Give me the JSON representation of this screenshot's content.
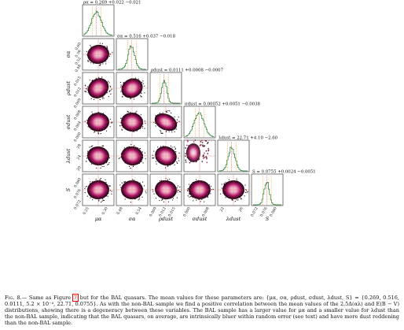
{
  "figure": {
    "panel_titles": [
      "ρα = 0.269 +0.022 −0.021",
      "σα = 0.516 +0.037 −0.018",
      "ρdust = 0.0111 +0.0008 −0.0007",
      "σdust = 0.00052 +0.0051 −0.0038",
      "λdust = 22.71 +4.10 −2.60",
      "S = 0.0755 +0.0024 −0.0051"
    ],
    "axis_labels": {
      "mu": "μα",
      "sigma": "σα",
      "rho": "ρdust",
      "sigdust": "σdust",
      "lambda": "λdust",
      "s": "S"
    },
    "x_ticks": {
      "mu": [
        "0.25",
        "0.30"
      ],
      "sigma": [
        "0.48",
        "0.54"
      ],
      "rho": [
        "0.009",
        "0.012",
        "0.015"
      ],
      "sigdust": [
        "0.000",
        "0.008"
      ],
      "lambda": [
        "22",
        "26"
      ],
      "s": [
        "0.072",
        "0.076",
        "0.080"
      ]
    },
    "y_ticks": {
      "sigma": [
        "0.60",
        "0.56",
        "0.52",
        "0.48"
      ],
      "rho": [
        "0.015",
        "0.012",
        "0.009"
      ],
      "sigdust": [
        "0.008",
        "0.004",
        "0.000"
      ],
      "lambda": [
        "28",
        "24",
        "20"
      ],
      "s": [
        "0.080",
        "0.076",
        "0.072"
      ]
    }
  },
  "caption": {
    "label": "Fig. 8.—",
    "ref": "7",
    "text_before_ref": "Same as Figure",
    "text_after_ref": "but for the BAL quasars. The mean values for these parameters are: {μα, σα, ρdust, σdust, λdust, S} = {0.269, 0.516, 0.0111, 5.2 × 10⁻⁴, 22.71, 0.0755}. As with the non-BAL sample we find a positive correlation between the mean values of the 2.5Δ(αλ) and E(B − V) distributions, showing there is a degeneracy between these variables. The BAL sample has a larger value for μα and a smaller value for λdust than the non-BAL sample, indicating that the BAL quasars, on average, are intrinsically bluer within random error (see text) and have more dust reddening than the non-BAL sample."
  },
  "colors": {
    "hist": "#1a7a2a",
    "red_line": "#e0402a",
    "orange_line": "#e8a020",
    "blob_outer": "#1a0a10",
    "blob_mid": "#b2186b",
    "blob_inner": "#f4c6d8"
  }
}
